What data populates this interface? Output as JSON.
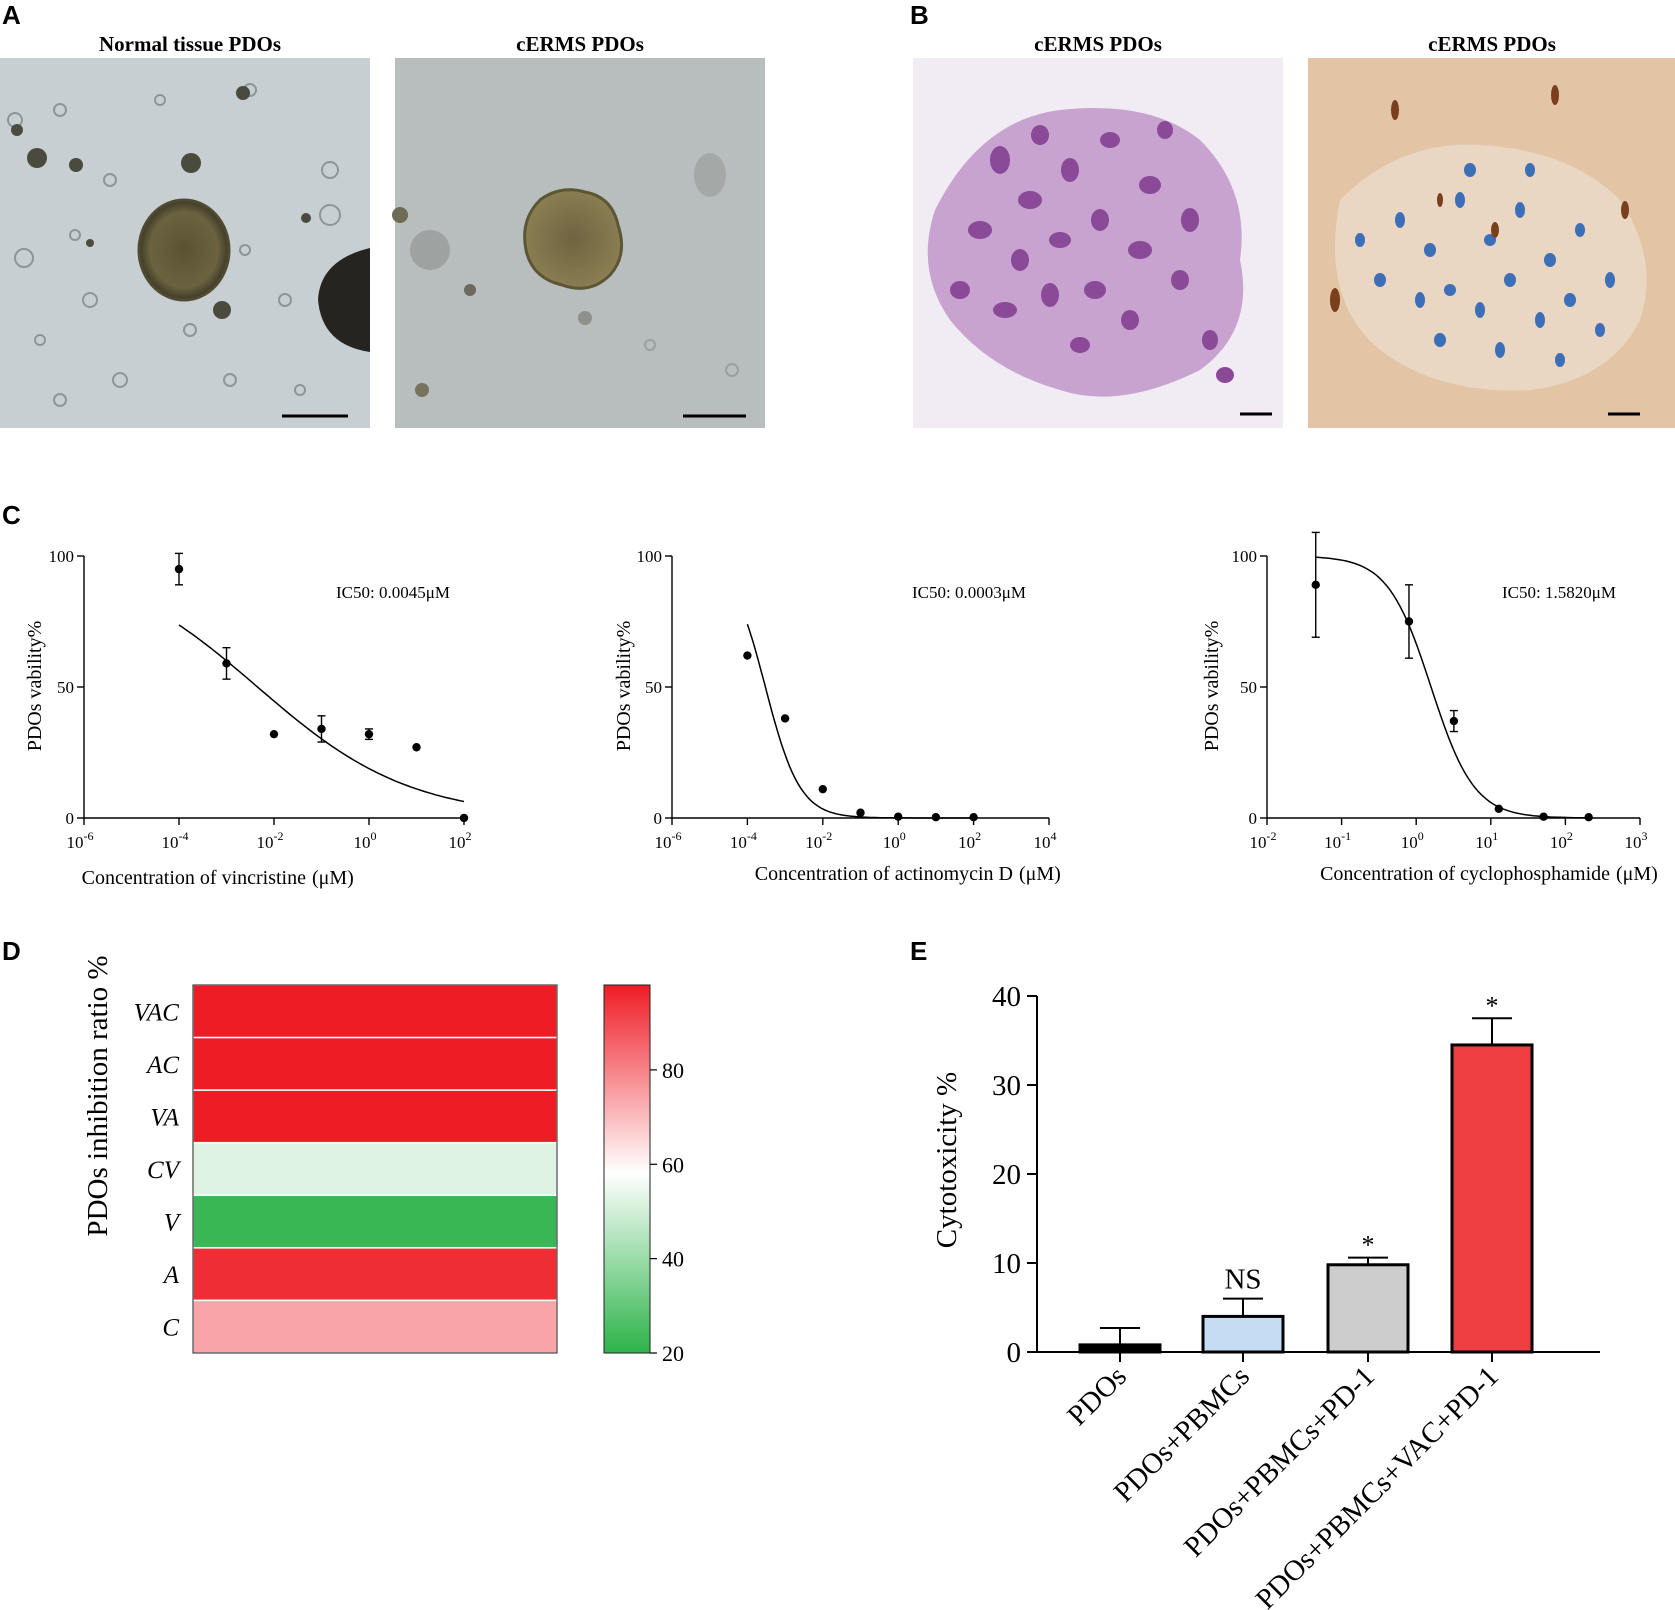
{
  "panels": {
    "A": "A",
    "B": "B",
    "C": "C",
    "D": "D",
    "E": "E"
  },
  "images": {
    "a1": {
      "title": "Normal tissue PDOs",
      "description": "brightfield micrograph of normal tissue organoids"
    },
    "a2": {
      "title": "cERMS PDOs",
      "description": "brightfield micrograph of cERMS organoid"
    },
    "b1": {
      "title": "cERMS PDOs",
      "description": "H&E stained section of cERMS organoid"
    },
    "b2": {
      "title": "cERMS PDOs",
      "description": "immunohistochemistry stained section of cERMS organoid"
    }
  },
  "chart_data": [
    {
      "id": "vincristine",
      "type": "scatter",
      "title": "",
      "xlabel": "Concentration of vincristine",
      "xunit": "(μM)",
      "ylabel": "PDOs vability%",
      "x_scale": "log",
      "x_ticks": [
        -6,
        -4,
        -2,
        0,
        2
      ],
      "xlim_log10": [
        -6,
        2
      ],
      "y_ticks": [
        0,
        50,
        100
      ],
      "ylim": [
        0,
        100
      ],
      "annotation": "IC50: 0.0045μM",
      "points": [
        {
          "x": 0.0001,
          "y": 95,
          "err": 6
        },
        {
          "x": 0.001,
          "y": 59,
          "err": 6
        },
        {
          "x": 0.01,
          "y": 32,
          "err": 0
        },
        {
          "x": 0.1,
          "y": 34,
          "err": 5
        },
        {
          "x": 1,
          "y": 32,
          "err": 2
        },
        {
          "x": 10,
          "y": 27,
          "err": 0
        },
        {
          "x": 100,
          "y": 0,
          "err": 0
        }
      ],
      "fit_curve": {
        "top": 100,
        "bottom": 0,
        "ic50": 0.0045,
        "hill": 0.27,
        "x_range_log10": [
          -4,
          2
        ]
      }
    },
    {
      "id": "actinomycin",
      "type": "scatter",
      "title": "",
      "xlabel": "Concentration of actinomycin D",
      "xunit": "(μM)",
      "ylabel": "PDOs vability%",
      "x_scale": "log",
      "x_ticks": [
        -6,
        -4,
        -2,
        0,
        2,
        4
      ],
      "xlim_log10": [
        -6,
        4
      ],
      "y_ticks": [
        0,
        50,
        100
      ],
      "ylim": [
        0,
        100
      ],
      "annotation": "IC50: 0.0003μM",
      "points": [
        {
          "x": 0.0001,
          "y": 62,
          "err": 0
        },
        {
          "x": 0.001,
          "y": 38,
          "err": 0
        },
        {
          "x": 0.01,
          "y": 11,
          "err": 0
        },
        {
          "x": 0.1,
          "y": 2,
          "err": 0
        },
        {
          "x": 1,
          "y": 0.5,
          "err": 0
        },
        {
          "x": 10,
          "y": 0.3,
          "err": 0
        },
        {
          "x": 100,
          "y": 0.3,
          "err": 0
        }
      ],
      "fit_curve": {
        "top": 100,
        "bottom": 0,
        "ic50": 0.0003,
        "hill": 0.95,
        "x_range_log10": [
          -4,
          2
        ]
      }
    },
    {
      "id": "cyclophosphamide",
      "type": "scatter",
      "title": "",
      "xlabel": "Concentration of cyclophosphamide",
      "xunit": "(μM)",
      "ylabel": "PDOs vability%",
      "x_scale": "log",
      "x_ticks": [
        -2,
        -1,
        0,
        1,
        2,
        3
      ],
      "xlim_log10": [
        -2,
        3
      ],
      "y_ticks": [
        0,
        50,
        100
      ],
      "ylim": [
        0,
        100
      ],
      "annotation": "IC50: 1.5820μM",
      "points": [
        {
          "x": 0.045,
          "y": 89,
          "err": 20
        },
        {
          "x": 0.8,
          "y": 75,
          "err": 14
        },
        {
          "x": 3.2,
          "y": 37,
          "err": 4
        },
        {
          "x": 12.8,
          "y": 3.5,
          "err": 0
        },
        {
          "x": 51,
          "y": 0.5,
          "err": 0
        },
        {
          "x": 205,
          "y": 0.3,
          "err": 0
        }
      ],
      "fit_curve": {
        "top": 100,
        "bottom": 0,
        "ic50": 1.582,
        "hill": 1.5,
        "x_range_log10": [
          -1.35,
          2.3
        ]
      }
    },
    {
      "id": "heatmap",
      "type": "heatmap",
      "title": "",
      "ylabel": "PDOs inhibition ratio %",
      "rows": [
        "VAC",
        "AC",
        "VA",
        "CV",
        "V",
        "A",
        "C"
      ],
      "values": [
        98,
        98,
        98,
        52,
        22,
        95,
        74
      ],
      "colorbar": {
        "min": 20,
        "max": 98,
        "ticks": [
          20,
          40,
          60,
          80
        ],
        "low_color": "#2db34a",
        "mid_color": "#ffffff",
        "high_color": "#ee1c25",
        "mid_value": 58
      }
    },
    {
      "id": "cytotoxicity",
      "type": "bar",
      "title": "",
      "ylabel": "Cytotoxicity %",
      "categories": [
        "PDOs",
        "PDOs+PBMCs",
        "PDOs+PBMCs+PD-1",
        "PDOs+PBMCs+VAC+PD-1"
      ],
      "values": [
        0.8,
        4.0,
        9.8,
        34.5
      ],
      "errors": [
        1.9,
        2.0,
        0.8,
        3.0
      ],
      "significance": [
        "",
        "NS",
        "*",
        "*"
      ],
      "colors": [
        "#000000",
        "#c6dcf2",
        "#cccccc",
        "#ef3f42"
      ],
      "ylim": [
        0,
        40
      ],
      "y_ticks": [
        0,
        10,
        20,
        30,
        40
      ]
    }
  ]
}
